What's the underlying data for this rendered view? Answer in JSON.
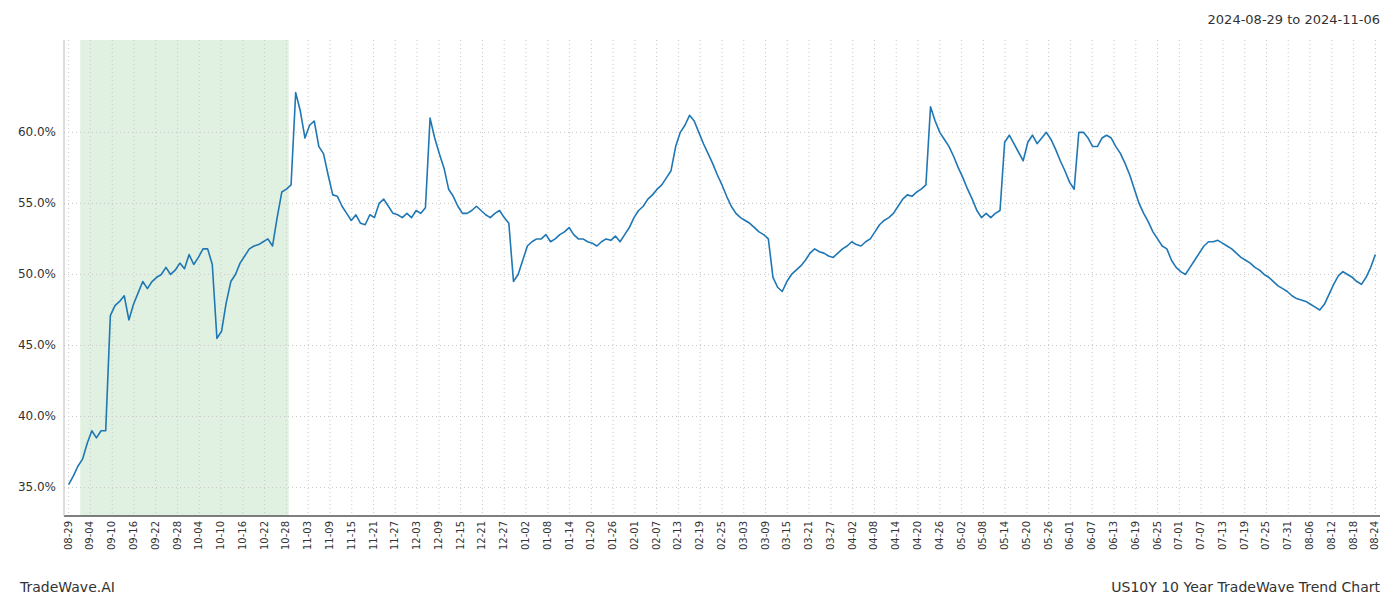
{
  "chart_data": {
    "type": "line",
    "title": "US10Y 10 Year TradeWave Trend Chart",
    "subtitle": "2024-08-29 to 2024-11-06",
    "annotations": [
      "TradeWave.AI"
    ],
    "color": "#1f77b4",
    "grid": true,
    "ylim": [
      0.33,
      0.665
    ],
    "yticks": [
      {
        "value": 0.35,
        "label": "35.0%"
      },
      {
        "value": 0.4,
        "label": "40.0%"
      },
      {
        "value": 0.45,
        "label": "45.0%"
      },
      {
        "value": 0.5,
        "label": "50.0%"
      },
      {
        "value": 0.55,
        "label": "55.0%"
      },
      {
        "value": 0.6,
        "label": "60.0%"
      }
    ],
    "xlim": [
      -1,
      283
    ],
    "xticks": [
      {
        "value": 0,
        "label": "08-29"
      },
      {
        "value": 4.7,
        "label": "09-04"
      },
      {
        "value": 9.4,
        "label": "09-10"
      },
      {
        "value": 14.1,
        "label": "09-16"
      },
      {
        "value": 18.8,
        "label": "09-22"
      },
      {
        "value": 23.5,
        "label": "09-28"
      },
      {
        "value": 28.2,
        "label": "10-04"
      },
      {
        "value": 32.9,
        "label": "10-10"
      },
      {
        "value": 37.6,
        "label": "10-16"
      },
      {
        "value": 42.3,
        "label": "10-22"
      },
      {
        "value": 47,
        "label": "10-28"
      },
      {
        "value": 51.7,
        "label": "11-03"
      },
      {
        "value": 56.4,
        "label": "11-09"
      },
      {
        "value": 61.1,
        "label": "11-15"
      },
      {
        "value": 65.8,
        "label": "11-21"
      },
      {
        "value": 70.5,
        "label": "11-27"
      },
      {
        "value": 75.2,
        "label": "12-03"
      },
      {
        "value": 79.9,
        "label": "12-09"
      },
      {
        "value": 84.6,
        "label": "12-15"
      },
      {
        "value": 89.3,
        "label": "12-21"
      },
      {
        "value": 94,
        "label": "12-27"
      },
      {
        "value": 98.7,
        "label": "01-02"
      },
      {
        "value": 103.4,
        "label": "01-08"
      },
      {
        "value": 108.1,
        "label": "01-14"
      },
      {
        "value": 112.8,
        "label": "01-20"
      },
      {
        "value": 117.5,
        "label": "01-26"
      },
      {
        "value": 122.2,
        "label": "02-01"
      },
      {
        "value": 126.9,
        "label": "02-07"
      },
      {
        "value": 131.6,
        "label": "02-13"
      },
      {
        "value": 136.3,
        "label": "02-19"
      },
      {
        "value": 141,
        "label": "02-25"
      },
      {
        "value": 145.7,
        "label": "03-03"
      },
      {
        "value": 150.4,
        "label": "03-09"
      },
      {
        "value": 155.1,
        "label": "03-15"
      },
      {
        "value": 159.8,
        "label": "03-21"
      },
      {
        "value": 164.5,
        "label": "03-27"
      },
      {
        "value": 169.2,
        "label": "04-02"
      },
      {
        "value": 173.9,
        "label": "04-08"
      },
      {
        "value": 178.6,
        "label": "04-14"
      },
      {
        "value": 183.3,
        "label": "04-20"
      },
      {
        "value": 188,
        "label": "04-26"
      },
      {
        "value": 192.7,
        "label": "05-02"
      },
      {
        "value": 197.4,
        "label": "05-08"
      },
      {
        "value": 202.1,
        "label": "05-14"
      },
      {
        "value": 206.8,
        "label": "05-20"
      },
      {
        "value": 211.5,
        "label": "05-26"
      },
      {
        "value": 216.2,
        "label": "06-01"
      },
      {
        "value": 220.9,
        "label": "06-07"
      },
      {
        "value": 225.6,
        "label": "06-13"
      },
      {
        "value": 230.3,
        "label": "06-19"
      },
      {
        "value": 235,
        "label": "06-25"
      },
      {
        "value": 239.7,
        "label": "07-01"
      },
      {
        "value": 244.4,
        "label": "07-07"
      },
      {
        "value": 249.1,
        "label": "07-13"
      },
      {
        "value": 253.8,
        "label": "07-19"
      },
      {
        "value": 258.5,
        "label": "07-25"
      },
      {
        "value": 263.2,
        "label": "07-31"
      },
      {
        "value": 267.9,
        "label": "08-06"
      },
      {
        "value": 272.6,
        "label": "08-12"
      },
      {
        "value": 277.3,
        "label": "08-18"
      },
      {
        "value": 282,
        "label": "08-24"
      }
    ],
    "shaded": {
      "range": [
        3,
        47
      ],
      "color": "#c8e6c9"
    },
    "values": [
      0.352,
      0.358,
      0.365,
      0.37,
      0.381,
      0.39,
      0.385,
      0.39,
      0.39,
      0.471,
      0.478,
      0.481,
      0.485,
      0.468,
      0.479,
      0.487,
      0.495,
      0.49,
      0.495,
      0.498,
      0.5,
      0.505,
      0.5,
      0.503,
      0.508,
      0.504,
      0.514,
      0.507,
      0.512,
      0.518,
      0.518,
      0.507,
      0.455,
      0.46,
      0.48,
      0.495,
      0.5,
      0.508,
      0.513,
      0.518,
      0.52,
      0.521,
      0.523,
      0.525,
      0.52,
      0.54,
      0.558,
      0.56,
      0.563,
      0.628,
      0.615,
      0.596,
      0.605,
      0.608,
      0.59,
      0.585,
      0.57,
      0.556,
      0.555,
      0.548,
      0.543,
      0.538,
      0.542,
      0.536,
      0.535,
      0.542,
      0.54,
      0.55,
      0.553,
      0.548,
      0.543,
      0.542,
      0.54,
      0.543,
      0.54,
      0.545,
      0.543,
      0.547,
      0.61,
      0.596,
      0.585,
      0.575,
      0.56,
      0.555,
      0.548,
      0.543,
      0.543,
      0.545,
      0.548,
      0.545,
      0.542,
      0.54,
      0.543,
      0.545,
      0.54,
      0.536,
      0.495,
      0.5,
      0.51,
      0.52,
      0.523,
      0.525,
      0.525,
      0.528,
      0.523,
      0.525,
      0.528,
      0.53,
      0.533,
      0.528,
      0.525,
      0.525,
      0.523,
      0.522,
      0.52,
      0.523,
      0.525,
      0.524,
      0.527,
      0.523,
      0.528,
      0.533,
      0.54,
      0.545,
      0.548,
      0.553,
      0.556,
      0.56,
      0.563,
      0.568,
      0.573,
      0.59,
      0.6,
      0.605,
      0.612,
      0.608,
      0.6,
      0.592,
      0.585,
      0.578,
      0.57,
      0.563,
      0.555,
      0.548,
      0.543,
      0.54,
      0.538,
      0.536,
      0.533,
      0.53,
      0.528,
      0.525,
      0.498,
      0.491,
      0.488,
      0.495,
      0.5,
      0.503,
      0.506,
      0.51,
      0.515,
      0.518,
      0.516,
      0.515,
      0.513,
      0.512,
      0.515,
      0.518,
      0.52,
      0.523,
      0.521,
      0.52,
      0.523,
      0.525,
      0.53,
      0.535,
      0.538,
      0.54,
      0.543,
      0.548,
      0.553,
      0.556,
      0.555,
      0.558,
      0.56,
      0.563,
      0.618,
      0.608,
      0.6,
      0.595,
      0.59,
      0.583,
      0.575,
      0.568,
      0.56,
      0.553,
      0.545,
      0.54,
      0.543,
      0.54,
      0.543,
      0.545,
      0.593,
      0.598,
      0.592,
      0.586,
      0.58,
      0.593,
      0.598,
      0.592,
      0.596,
      0.6,
      0.595,
      0.588,
      0.58,
      0.573,
      0.565,
      0.56,
      0.6,
      0.6,
      0.596,
      0.59,
      0.59,
      0.596,
      0.598,
      0.596,
      0.59,
      0.585,
      0.578,
      0.57,
      0.56,
      0.55,
      0.543,
      0.537,
      0.53,
      0.525,
      0.52,
      0.518,
      0.51,
      0.505,
      0.502,
      0.5,
      0.505,
      0.51,
      0.515,
      0.52,
      0.523,
      0.523,
      0.524,
      0.522,
      0.52,
      0.518,
      0.515,
      0.512,
      0.51,
      0.508,
      0.505,
      0.503,
      0.5,
      0.498,
      0.495,
      0.492,
      0.49,
      0.488,
      0.485,
      0.483,
      0.482,
      0.481,
      0.479,
      0.477,
      0.475,
      0.479,
      0.486,
      0.493,
      0.499,
      0.502,
      0.5,
      0.498,
      0.495,
      0.493,
      0.498,
      0.505,
      0.514
    ]
  }
}
